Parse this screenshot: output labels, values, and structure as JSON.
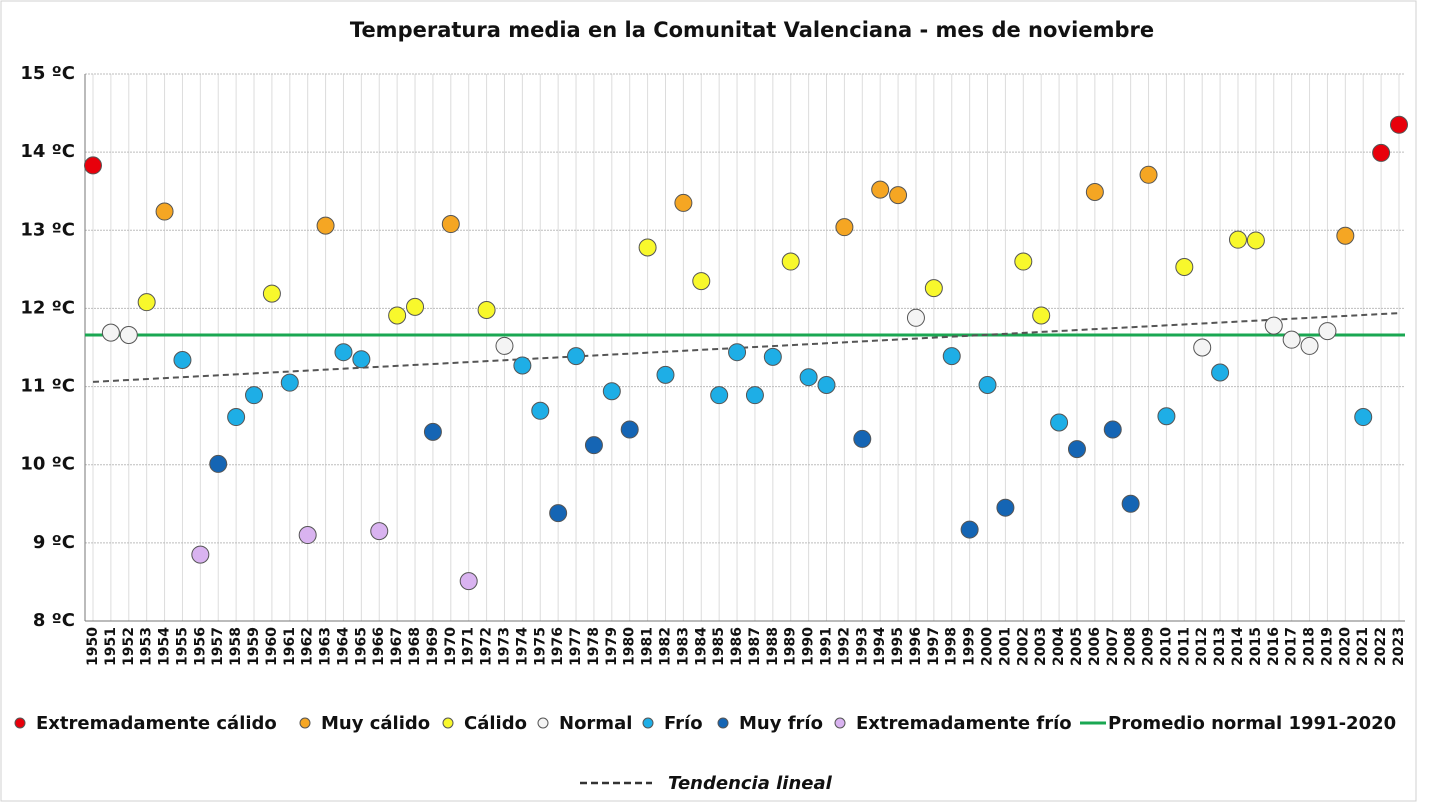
{
  "chart_data": {
    "type": "scatter",
    "title": "Temperatura media en la Comunitat Valenciana - mes de noviembre",
    "xlim": [
      1950,
      2023
    ],
    "xticks": [
      1950,
      1951,
      1952,
      1953,
      1954,
      1955,
      1956,
      1957,
      1958,
      1959,
      1960,
      1961,
      1962,
      1963,
      1964,
      1965,
      1966,
      1967,
      1968,
      1969,
      1970,
      1971,
      1972,
      1973,
      1974,
      1975,
      1976,
      1977,
      1978,
      1979,
      1980,
      1981,
      1982,
      1983,
      1984,
      1985,
      1986,
      1987,
      1988,
      1989,
      1990,
      1991,
      1992,
      1993,
      1994,
      1995,
      1996,
      1997,
      1998,
      1999,
      2000,
      2001,
      2002,
      2003,
      2004,
      2005,
      2006,
      2007,
      2008,
      2009,
      2010,
      2011,
      2012,
      2013,
      2014,
      2015,
      2016,
      2017,
      2018,
      2019,
      2020,
      2021,
      2022,
      2023
    ],
    "ylim": [
      8,
      15
    ],
    "yticks": [
      {
        "value": 8,
        "label": "8 ºC"
      },
      {
        "value": 9,
        "label": "9 ºC"
      },
      {
        "value": 10,
        "label": "10 ºC"
      },
      {
        "value": 11,
        "label": "11 ºC"
      },
      {
        "value": 12,
        "label": "12 ºC"
      },
      {
        "value": 13,
        "label": "13 ºC"
      },
      {
        "value": 14,
        "label": "14 ºC"
      },
      {
        "value": 15,
        "label": "15 ºC"
      }
    ],
    "grid": true,
    "series": [
      {
        "name": "Extremadamente cálido",
        "color": "#e8000b",
        "x": [
          1950,
          2022,
          2023
        ],
        "values": [
          13.83,
          13.99,
          14.35
        ]
      },
      {
        "name": "Muy cálido",
        "color": "#f5a623",
        "x": [
          1954,
          1963,
          1970,
          1983,
          1992,
          1994,
          1995,
          2006,
          2009,
          2020
        ],
        "values": [
          13.24,
          13.06,
          13.08,
          13.35,
          13.04,
          13.52,
          13.45,
          13.49,
          13.71,
          12.93
        ]
      },
      {
        "name": "Cálido",
        "color": "#f8f82c",
        "x": [
          1953,
          1960,
          1967,
          1968,
          1972,
          1981,
          1984,
          1989,
          1997,
          2002,
          2003,
          2011,
          2014,
          2015
        ],
        "values": [
          12.08,
          12.19,
          11.91,
          12.02,
          11.98,
          12.78,
          12.35,
          12.6,
          12.26,
          12.6,
          11.91,
          12.53,
          12.88,
          12.87
        ]
      },
      {
        "name": "Normal",
        "color": "#f4f4f4",
        "x": [
          1951,
          1952,
          1973,
          1996,
          2012,
          2016,
          2017,
          2018,
          2019
        ],
        "values": [
          11.69,
          11.66,
          11.52,
          11.88,
          11.5,
          11.78,
          11.6,
          11.52,
          11.71
        ]
      },
      {
        "name": "Frío",
        "color": "#1eaee6",
        "x": [
          1955,
          1958,
          1959,
          1961,
          1964,
          1965,
          1974,
          1975,
          1977,
          1979,
          1982,
          1985,
          1986,
          1987,
          1988,
          1990,
          1991,
          1998,
          2000,
          2004,
          2010,
          2013,
          2021
        ],
        "values": [
          11.34,
          10.61,
          10.89,
          11.05,
          11.44,
          11.35,
          11.27,
          10.69,
          11.39,
          10.94,
          11.15,
          10.89,
          11.44,
          10.89,
          11.38,
          11.12,
          11.02,
          11.39,
          11.02,
          10.54,
          10.62,
          11.18,
          10.61
        ]
      },
      {
        "name": "Muy frío",
        "color": "#1565b4",
        "x": [
          1957,
          1969,
          1976,
          1978,
          1980,
          1993,
          1999,
          2001,
          2005,
          2007,
          2008
        ],
        "values": [
          10.01,
          10.42,
          9.38,
          10.25,
          10.45,
          10.33,
          9.17,
          9.45,
          10.2,
          10.45,
          9.5
        ]
      },
      {
        "name": "Extremadamente frío",
        "color": "#d9b3f0",
        "x": [
          1956,
          1962,
          1966,
          1971
        ],
        "values": [
          8.85,
          9.1,
          9.15,
          8.51
        ]
      }
    ],
    "normal": {
      "name": "Promedio normal 1991-2020",
      "color": "#1aa752",
      "value": 11.66
    },
    "trend": {
      "name": "Tendencia lineal",
      "color": "#555555",
      "x": [
        1950,
        2023
      ],
      "values": [
        11.06,
        11.94
      ]
    }
  }
}
